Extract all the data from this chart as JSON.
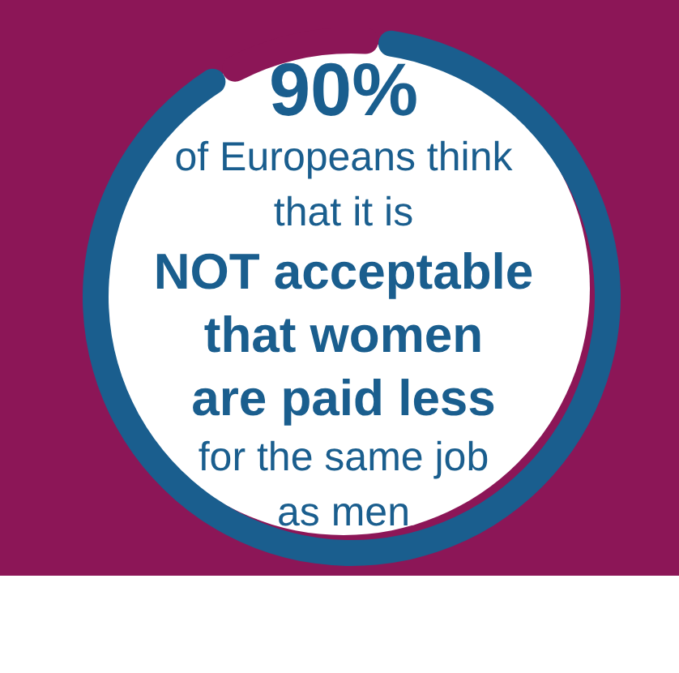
{
  "chart_data": {
    "type": "donut",
    "categories": [
      null,
      null
    ],
    "values": [
      90,
      10
    ],
    "colors": [
      "#1a5e8e",
      "#8c1657"
    ],
    "value_labels": [
      "90%",
      null
    ],
    "annotations": [
      "of Europeans think",
      "that it is",
      "NOT acceptable",
      "that women",
      "are paid less",
      "for the same job",
      "as men"
    ]
  }
}
